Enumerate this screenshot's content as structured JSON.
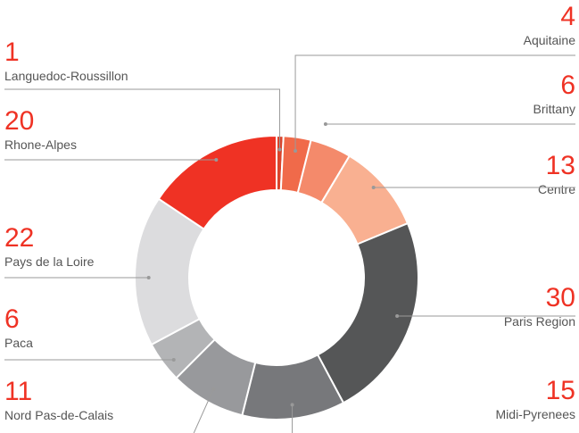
{
  "chart_data": {
    "type": "donut",
    "categories": [
      "Languedoc-Roussillon",
      "Aquitaine",
      "Brittany",
      "Centre",
      "Paris Region",
      "Midi-Pyrenees",
      "Nord Pas-de-Calais",
      "Paca",
      "Pays de la Loire",
      "Rhone-Alpes"
    ],
    "values": [
      1,
      4,
      6,
      13,
      30,
      15,
      11,
      6,
      22,
      20
    ],
    "colors": [
      "#d9432c",
      "#f06a4a",
      "#f48a6b",
      "#f9b091",
      "#555657",
      "#77787b",
      "#98999c",
      "#b3b4b6",
      "#dcdcde",
      "#ef3224"
    ]
  }
}
